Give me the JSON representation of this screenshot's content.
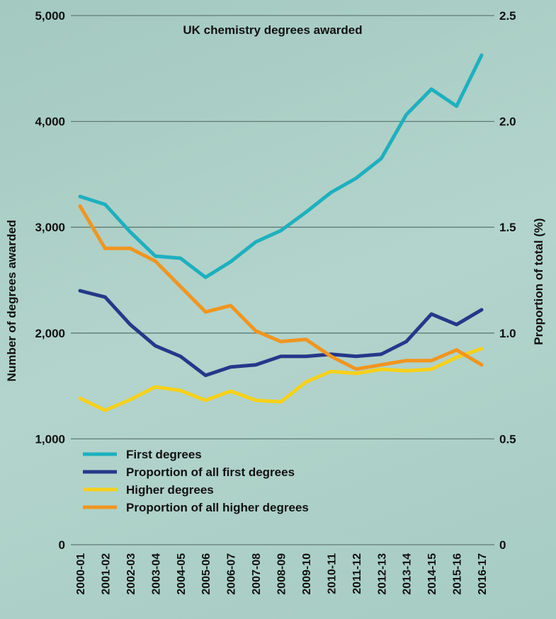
{
  "chart_data": {
    "type": "line",
    "title": "UK chemistry degrees awarded",
    "ylabel": "Number of degrees awarded",
    "y2label": "Proportion of total (%)",
    "ylim": [
      0,
      5000
    ],
    "y2lim": [
      0,
      2.5
    ],
    "yticks": [
      "0",
      "1,000",
      "2,000",
      "3,000",
      "4,000",
      "5,000"
    ],
    "y2ticks": [
      "0",
      "0.5",
      "1.0",
      "1.5",
      "2.0",
      "2.5"
    ],
    "grid": true,
    "legend_placement": "bottom-left",
    "categories": [
      "2000-01",
      "2001-02",
      "2002-03",
      "2003-04",
      "2004-05",
      "2005-06",
      "2006-07",
      "2007-08",
      "2008-09",
      "2009-10",
      "2010-11",
      "2011-12",
      "2012-13",
      "2013-14",
      "2014-15",
      "2015-16",
      "2016-17"
    ],
    "series": [
      {
        "name": "First degrees",
        "axis": "left",
        "color": "#1eb0be",
        "values": [
          3290,
          3215,
          2955,
          2727,
          2707,
          2527,
          2674,
          2861,
          2968,
          3142,
          3329,
          3463,
          3650,
          4064,
          4305,
          4144,
          4626
        ]
      },
      {
        "name": "Proportion of all first degrees",
        "axis": "right",
        "color": "#25388a",
        "values": [
          1.2,
          1.17,
          1.04,
          0.94,
          0.89,
          0.8,
          0.84,
          0.85,
          0.89,
          0.89,
          0.9,
          0.89,
          0.9,
          0.96,
          1.09,
          1.04,
          1.11
        ]
      },
      {
        "name": "Higher degrees",
        "axis": "left",
        "color": "#f6d01a",
        "values": [
          1384,
          1270,
          1370,
          1491,
          1457,
          1364,
          1451,
          1364,
          1350,
          1537,
          1638,
          1618,
          1658,
          1644,
          1658,
          1771,
          1852
        ]
      },
      {
        "name": "Proportion of all higher degrees",
        "axis": "right",
        "color": "#f1951f",
        "values": [
          1.6,
          1.4,
          1.4,
          1.34,
          1.22,
          1.1,
          1.13,
          1.01,
          0.96,
          0.97,
          0.89,
          0.83,
          0.85,
          0.87,
          0.87,
          0.92,
          0.85
        ]
      }
    ]
  }
}
